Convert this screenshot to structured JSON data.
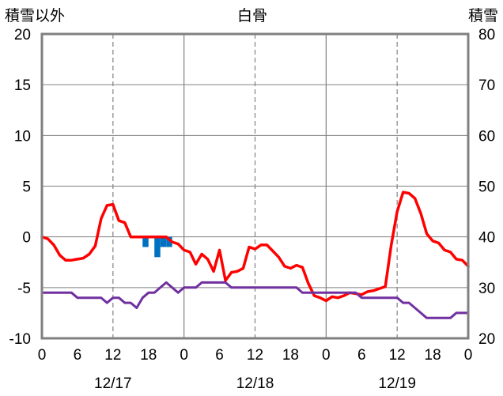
{
  "chart_data": {
    "type": "line",
    "title": "白骨",
    "left_axis_label": "積雪以外",
    "right_axis_label": "積雪",
    "left_ylim": [
      -10,
      20
    ],
    "left_yticks": [
      20,
      15,
      10,
      5,
      0,
      -5,
      -10
    ],
    "right_ylim": [
      20,
      80
    ],
    "right_yticks": [
      80,
      70,
      60,
      50,
      40,
      30,
      20
    ],
    "x_range": [
      0,
      72
    ],
    "x_tick_labels": [
      "0",
      "6",
      "12",
      "18",
      "0",
      "6",
      "12",
      "18",
      "0",
      "6",
      "12",
      "18",
      "0"
    ],
    "x_tick_values": [
      0,
      6,
      12,
      18,
      24,
      30,
      36,
      42,
      48,
      54,
      60,
      66,
      72
    ],
    "day_labels": [
      {
        "x": 12,
        "text": "12/17"
      },
      {
        "x": 36,
        "text": "12/18"
      },
      {
        "x": 60,
        "text": "12/19"
      }
    ],
    "grid": true,
    "colors": {
      "temperature": "#ff0000",
      "snow_depth": "#7030a0",
      "precipitation": "#0070c0",
      "grid": "#808080",
      "frame": "#808080"
    },
    "series": [
      {
        "key": "temperature",
        "axis": "left",
        "style": "line",
        "points": [
          [
            0,
            0
          ],
          [
            1,
            -0.2
          ],
          [
            2,
            -0.8
          ],
          [
            3,
            -1.8
          ],
          [
            4,
            -2.3
          ],
          [
            5,
            -2.3
          ],
          [
            6,
            -2.2
          ],
          [
            7,
            -2.1
          ],
          [
            8,
            -1.7
          ],
          [
            9,
            -0.9
          ],
          [
            10,
            1.8
          ],
          [
            11,
            3.1
          ],
          [
            12,
            3.2
          ],
          [
            13,
            1.6
          ],
          [
            14,
            1.4
          ],
          [
            15,
            0
          ],
          [
            16,
            0
          ],
          [
            17,
            0
          ],
          [
            18,
            0
          ],
          [
            19,
            0
          ],
          [
            20,
            0
          ],
          [
            21,
            0
          ],
          [
            22,
            -0.5
          ],
          [
            23,
            -0.7
          ],
          [
            24,
            -1.3
          ],
          [
            25,
            -1.5
          ],
          [
            26,
            -2.7
          ],
          [
            27,
            -1.7
          ],
          [
            28,
            -2.2
          ],
          [
            29,
            -3.4
          ],
          [
            30,
            -1.3
          ],
          [
            31,
            -4.3
          ],
          [
            32,
            -3.5
          ],
          [
            33,
            -3.4
          ],
          [
            34,
            -3.1
          ],
          [
            35,
            -1.0
          ],
          [
            36,
            -1.2
          ],
          [
            37,
            -0.8
          ],
          [
            38,
            -0.8
          ],
          [
            39,
            -1.4
          ],
          [
            40,
            -2.0
          ],
          [
            41,
            -2.9
          ],
          [
            42,
            -3.1
          ],
          [
            43,
            -2.8
          ],
          [
            44,
            -3.0
          ],
          [
            45,
            -4.6
          ],
          [
            46,
            -5.8
          ],
          [
            47,
            -6.0
          ],
          [
            48,
            -6.3
          ],
          [
            49,
            -5.9
          ],
          [
            50,
            -6.0
          ],
          [
            51,
            -5.8
          ],
          [
            52,
            -5.5
          ],
          [
            53,
            -5.6
          ],
          [
            54,
            -5.7
          ],
          [
            55,
            -5.4
          ],
          [
            56,
            -5.3
          ],
          [
            57,
            -5.1
          ],
          [
            58,
            -4.9
          ],
          [
            59,
            -0.8
          ],
          [
            60,
            2.5
          ],
          [
            61,
            4.4
          ],
          [
            62,
            4.3
          ],
          [
            63,
            3.8
          ],
          [
            64,
            2.3
          ],
          [
            65,
            0.3
          ],
          [
            66,
            -0.4
          ],
          [
            67,
            -0.6
          ],
          [
            68,
            -1.3
          ],
          [
            69,
            -1.5
          ],
          [
            70,
            -2.2
          ],
          [
            71,
            -2.3
          ],
          [
            72,
            -2.9
          ]
        ]
      },
      {
        "key": "snow_depth",
        "axis": "right",
        "style": "line",
        "points": [
          [
            0,
            29
          ],
          [
            1,
            29
          ],
          [
            2,
            29
          ],
          [
            3,
            29
          ],
          [
            4,
            29
          ],
          [
            5,
            29
          ],
          [
            6,
            28
          ],
          [
            7,
            28
          ],
          [
            8,
            28
          ],
          [
            9,
            28
          ],
          [
            10,
            28
          ],
          [
            11,
            27
          ],
          [
            12,
            28
          ],
          [
            13,
            28
          ],
          [
            14,
            27
          ],
          [
            15,
            27
          ],
          [
            16,
            26
          ],
          [
            17,
            28
          ],
          [
            18,
            29
          ],
          [
            19,
            29
          ],
          [
            20,
            30
          ],
          [
            21,
            31
          ],
          [
            22,
            30
          ],
          [
            23,
            29
          ],
          [
            24,
            30
          ],
          [
            25,
            30
          ],
          [
            26,
            30
          ],
          [
            27,
            31
          ],
          [
            28,
            31
          ],
          [
            29,
            31
          ],
          [
            30,
            31
          ],
          [
            31,
            31
          ],
          [
            32,
            30
          ],
          [
            33,
            30
          ],
          [
            34,
            30
          ],
          [
            35,
            30
          ],
          [
            36,
            30
          ],
          [
            37,
            30
          ],
          [
            38,
            30
          ],
          [
            39,
            30
          ],
          [
            40,
            30
          ],
          [
            41,
            30
          ],
          [
            42,
            30
          ],
          [
            43,
            30
          ],
          [
            44,
            29
          ],
          [
            45,
            29
          ],
          [
            46,
            29
          ],
          [
            47,
            29
          ],
          [
            48,
            29
          ],
          [
            49,
            29
          ],
          [
            50,
            29
          ],
          [
            51,
            29
          ],
          [
            52,
            29
          ],
          [
            53,
            29
          ],
          [
            54,
            28
          ],
          [
            55,
            28
          ],
          [
            56,
            28
          ],
          [
            57,
            28
          ],
          [
            58,
            28
          ],
          [
            59,
            28
          ],
          [
            60,
            28
          ],
          [
            61,
            27
          ],
          [
            62,
            27
          ],
          [
            63,
            26
          ],
          [
            64,
            25
          ],
          [
            65,
            24
          ],
          [
            66,
            24
          ],
          [
            67,
            24
          ],
          [
            68,
            24
          ],
          [
            69,
            24
          ],
          [
            70,
            25
          ],
          [
            71,
            25
          ],
          [
            72,
            25
          ]
        ]
      },
      {
        "key": "precipitation",
        "axis": "left",
        "style": "bars_down",
        "bar_width_hours": 1,
        "points": [
          [
            17,
            -1.0
          ],
          [
            19,
            -2.0
          ],
          [
            20,
            -1.0
          ],
          [
            21,
            -1.0
          ]
        ]
      }
    ]
  }
}
